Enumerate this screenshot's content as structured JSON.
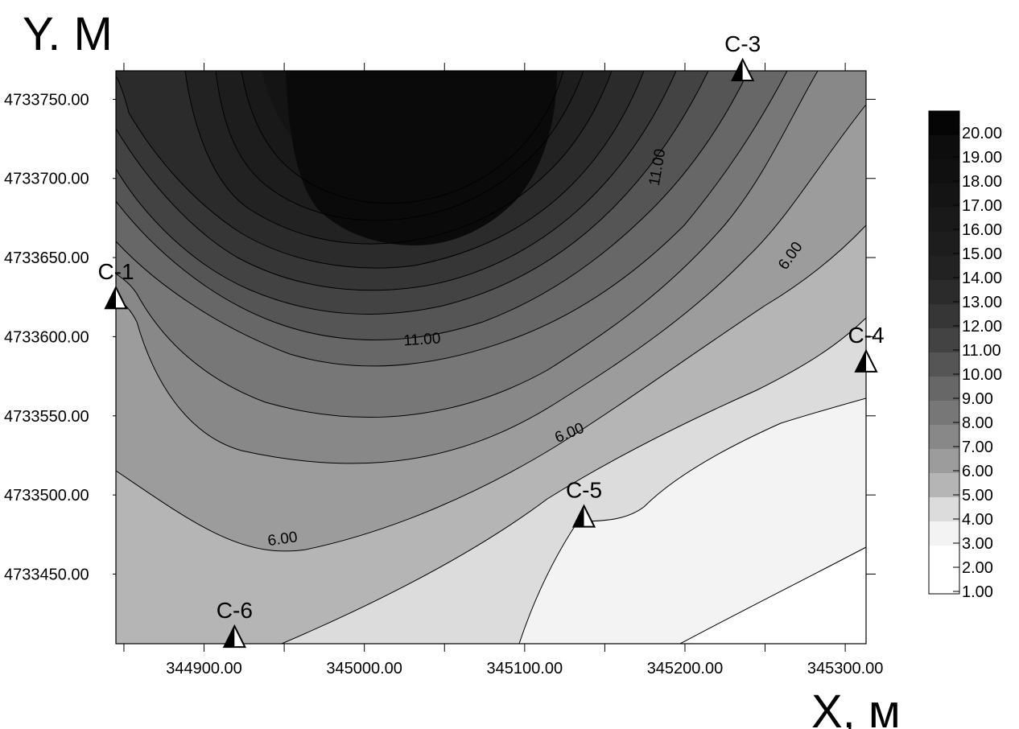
{
  "chart_data": {
    "type": "contour",
    "y_title": "Y. M",
    "x_title": "X, м",
    "xlim": [
      344845,
      345313
    ],
    "ylim": [
      4733406,
      4733768
    ],
    "x_ticks": [
      "344900.00",
      "345000.00",
      "345100.00",
      "345200.00",
      "345300.00"
    ],
    "x_tick_values": [
      344900,
      345000,
      345100,
      345200,
      345300
    ],
    "y_ticks": [
      "4733750.00",
      "4733700.00",
      "4733650.00",
      "4733600.00",
      "4733550.00",
      "4733500.00",
      "4733450.00"
    ],
    "y_tick_values": [
      4733750,
      4733700,
      4733650,
      4733600,
      4733550,
      4733500,
      4733450
    ],
    "legend_levels": [
      "20.00",
      "19.00",
      "18.00",
      "17.00",
      "16.00",
      "15.00",
      "14.00",
      "13.00",
      "12.00",
      "11.00",
      "10.00",
      "9.00",
      "8.00",
      "7.00",
      "6.00",
      "5.00",
      "4.00",
      "3.00",
      "2.00",
      "1.00"
    ],
    "legend_colors": [
      "#050505",
      "#0d0d0d",
      "#101010",
      "#141414",
      "#191919",
      "#1d1d1d",
      "#222222",
      "#2b2b2b",
      "#363636",
      "#434343",
      "#555555",
      "#676767",
      "#777777",
      "#888888",
      "#9c9c9c",
      "#b5b5b5",
      "#dcdcdc",
      "#f3f3f3",
      "#ffffff",
      "#ffffff"
    ],
    "contour_labels": [
      {
        "text": "11.00",
        "x": 345183,
        "y": 4733707,
        "angle": -80
      },
      {
        "text": "6.00",
        "x": 345266,
        "y": 4733651,
        "angle": -55
      },
      {
        "text": "11.00",
        "x": 345036,
        "y": 4733598,
        "angle": -4
      },
      {
        "text": "6.00",
        "x": 345128,
        "y": 4733539,
        "angle": -22
      },
      {
        "text": "6.00",
        "x": 344949,
        "y": 4733472,
        "angle": -8
      }
    ],
    "wells": [
      {
        "name": "С-1",
        "x": 344845,
        "y": 4733624
      },
      {
        "name": "С-3",
        "x": 345236,
        "y": 4733768
      },
      {
        "name": "С-4",
        "x": 345313,
        "y": 4733584
      },
      {
        "name": "С-5",
        "x": 345137,
        "y": 4733486
      },
      {
        "name": "С-6",
        "x": 344919,
        "y": 4733410
      }
    ]
  }
}
